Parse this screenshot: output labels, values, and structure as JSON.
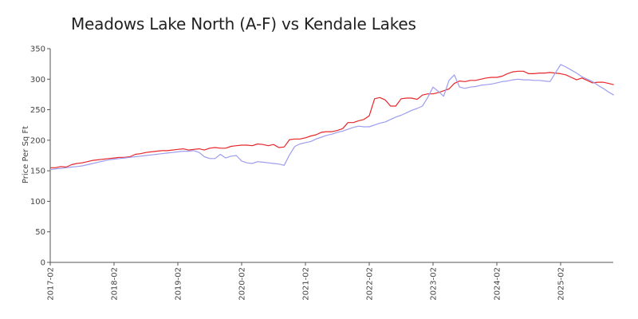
{
  "chart_data": {
    "type": "line",
    "title": "Meadows Lake North (A-F) vs Kendale Lakes",
    "xlabel": "",
    "ylabel": "Price Per Sq Ft",
    "ylim": [
      0,
      350
    ],
    "yticks": [
      0,
      50,
      100,
      150,
      200,
      250,
      300,
      350
    ],
    "xticks": [
      "2017-02",
      "2018-02",
      "2019-02",
      "2020-02",
      "2021-02",
      "2022-02",
      "2023-02",
      "2024-02",
      "2025-02"
    ],
    "grid": false,
    "legend": "none",
    "x_start": "2017-02",
    "series": [
      {
        "color": "#e8262a",
        "values": [
          155,
          155,
          157,
          156,
          160,
          162,
          163,
          165,
          167,
          168,
          169,
          170,
          171,
          172,
          172,
          173,
          177,
          178,
          180,
          181,
          182,
          183,
          183,
          184,
          185,
          186,
          184,
          185,
          186,
          184,
          187,
          188,
          187,
          187,
          190,
          191,
          192,
          192,
          191,
          194,
          193,
          191,
          193,
          188,
          189,
          201,
          202,
          202,
          204,
          207,
          209,
          213,
          214,
          214,
          216,
          219,
          229,
          229,
          232,
          234,
          240,
          268,
          270,
          266,
          256,
          256,
          268,
          269,
          269,
          267,
          274,
          276,
          276,
          278,
          281,
          284,
          293,
          297,
          296,
          298,
          298,
          300,
          302,
          303,
          303,
          305,
          309,
          312,
          313,
          313,
          309,
          309,
          310,
          310,
          311,
          310,
          309,
          307,
          303,
          299,
          302,
          298,
          294,
          295,
          295,
          293,
          291
        ]
      },
      {
        "color": "#9d9dee",
        "values": [
          152,
          153,
          154,
          155,
          156,
          157,
          158,
          160,
          162,
          164,
          166,
          168,
          169,
          170,
          171,
          172,
          173,
          174,
          175,
          176,
          177,
          178,
          179,
          180,
          181,
          182,
          182,
          183,
          180,
          173,
          170,
          170,
          177,
          171,
          174,
          175,
          166,
          163,
          162,
          165,
          164,
          163,
          162,
          161,
          159,
          176,
          190,
          194,
          196,
          198,
          202,
          205,
          208,
          210,
          213,
          215,
          218,
          221,
          223,
          222,
          222,
          225,
          228,
          230,
          234,
          238,
          241,
          245,
          249,
          252,
          256,
          270,
          287,
          280,
          272,
          298,
          307,
          287,
          285,
          287,
          288,
          290,
          291,
          292,
          294,
          296,
          297,
          299,
          300,
          299,
          299,
          298,
          298,
          297,
          296,
          310,
          324,
          320,
          315,
          310,
          304,
          300,
          296,
          290,
          285,
          279,
          274
        ]
      }
    ]
  }
}
